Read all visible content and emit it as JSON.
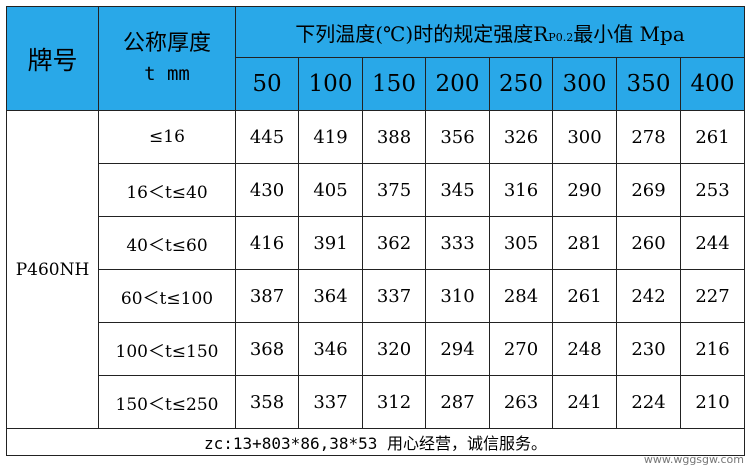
{
  "header": {
    "grade_label": "牌号",
    "thickness_label": "公称厚度",
    "thickness_unit": "t mm",
    "title_prefix": "下列温度(℃)时的规定强度R",
    "title_sub": "P0.2",
    "title_suffix": "最小值 Mpa",
    "temperatures": [
      "50",
      "100",
      "150",
      "200",
      "250",
      "300",
      "350",
      "400"
    ]
  },
  "grade": "P460NH",
  "rows": [
    {
      "range": "≤16",
      "values": [
        "445",
        "419",
        "388",
        "356",
        "326",
        "300",
        "278",
        "261"
      ]
    },
    {
      "range": "16＜t≤40",
      "values": [
        "430",
        "405",
        "375",
        "345",
        "316",
        "290",
        "269",
        "253"
      ]
    },
    {
      "range": "40＜t≤60",
      "values": [
        "416",
        "391",
        "362",
        "333",
        "305",
        "281",
        "260",
        "244"
      ]
    },
    {
      "range": "60＜t≤100",
      "values": [
        "387",
        "364",
        "337",
        "310",
        "284",
        "261",
        "242",
        "227"
      ]
    },
    {
      "range": "100＜t≤150",
      "values": [
        "368",
        "346",
        "320",
        "294",
        "270",
        "248",
        "230",
        "216"
      ]
    },
    {
      "range": "150＜t≤250",
      "values": [
        "358",
        "337",
        "312",
        "287",
        "263",
        "241",
        "224",
        "210"
      ]
    }
  ],
  "footer": "zc:13+803*86,38*53 用心经营，诚信服务。",
  "watermark": "www.wggsgw.com"
}
